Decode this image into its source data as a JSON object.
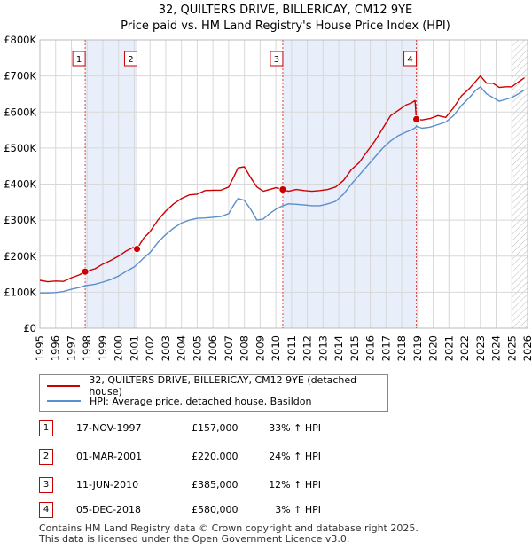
{
  "chart_data": {
    "type": "line",
    "title": "32, QUILTERS DRIVE, BILLERICAY, CM12 9YE",
    "subtitle": "Price paid vs. HM Land Registry's House Price Index (HPI)",
    "xlabel": "",
    "ylabel": "",
    "xlim": [
      1995,
      2026
    ],
    "ylim": [
      0,
      800000
    ],
    "x_ticks": [
      "1995",
      "1996",
      "1997",
      "1998",
      "1999",
      "2000",
      "2001",
      "2002",
      "2003",
      "2004",
      "2005",
      "2006",
      "2007",
      "2008",
      "2009",
      "2010",
      "2011",
      "2012",
      "2013",
      "2014",
      "2015",
      "2016",
      "2017",
      "2018",
      "2019",
      "2020",
      "2021",
      "2022",
      "2023",
      "2024",
      "2025",
      "2026"
    ],
    "y_ticks": [
      {
        "value": 0,
        "label": "£0"
      },
      {
        "value": 100000,
        "label": "£100K"
      },
      {
        "value": 200000,
        "label": "£200K"
      },
      {
        "value": 300000,
        "label": "£300K"
      },
      {
        "value": 400000,
        "label": "£400K"
      },
      {
        "value": 500000,
        "label": "£500K"
      },
      {
        "value": 600000,
        "label": "£600K"
      },
      {
        "value": 700000,
        "label": "£700K"
      },
      {
        "value": 800000,
        "label": "£800K"
      }
    ],
    "grid": true,
    "shaded_ranges": [
      [
        1997.88,
        2001.17
      ],
      [
        2010.44,
        2018.93
      ]
    ],
    "future_hatch_from": 2025.0,
    "series": [
      {
        "name": "32, QUILTERS DRIVE, BILLERICAY, CM12 9YE (detached house)",
        "color": "#cc0000",
        "x": [
          1995.0,
          1995.5,
          1996.0,
          1996.5,
          1997.0,
          1997.5,
          1997.88,
          1998.5,
          1999.0,
          1999.5,
          2000.0,
          2000.5,
          2001.0,
          2001.17,
          2001.6,
          2002.0,
          2002.5,
          2003.0,
          2003.5,
          2004.0,
          2004.5,
          2005.0,
          2005.5,
          2006.0,
          2006.5,
          2007.0,
          2007.3,
          2007.6,
          2008.0,
          2008.4,
          2008.8,
          2009.2,
          2009.6,
          2010.0,
          2010.44,
          2010.8,
          2011.3,
          2011.8,
          2012.3,
          2012.8,
          2013.3,
          2013.8,
          2014.3,
          2014.8,
          2015.3,
          2015.8,
          2016.3,
          2016.8,
          2017.3,
          2017.8,
          2018.3,
          2018.6,
          2018.85,
          2018.93,
          2019.3,
          2019.8,
          2020.3,
          2020.8,
          2021.3,
          2021.8,
          2022.3,
          2022.7,
          2023.0,
          2023.4,
          2023.8,
          2024.2,
          2024.6,
          2025.0,
          2025.4,
          2025.8
        ],
        "values": [
          133000,
          129000,
          131000,
          130000,
          140000,
          148000,
          157000,
          165000,
          178000,
          188000,
          200000,
          215000,
          226000,
          220000,
          250000,
          268000,
          300000,
          325000,
          345000,
          360000,
          370000,
          372000,
          382000,
          383000,
          383000,
          392000,
          418000,
          445000,
          448000,
          418000,
          392000,
          380000,
          385000,
          390000,
          385000,
          380000,
          385000,
          382000,
          380000,
          382000,
          385000,
          392000,
          410000,
          440000,
          460000,
          490000,
          520000,
          555000,
          590000,
          605000,
          620000,
          625000,
          632000,
          580000,
          578000,
          582000,
          590000,
          585000,
          612000,
          645000,
          665000,
          685000,
          700000,
          680000,
          680000,
          668000,
          670000,
          670000,
          683000,
          695000
        ]
      },
      {
        "name": "HPI: Average price, detached house, Basildon",
        "color": "#5a8fcc",
        "x": [
          1995.0,
          1995.5,
          1996.0,
          1996.5,
          1997.0,
          1997.5,
          1997.88,
          1998.5,
          1999.0,
          1999.5,
          2000.0,
          2000.5,
          2001.0,
          2001.17,
          2001.6,
          2002.0,
          2002.5,
          2003.0,
          2003.5,
          2004.0,
          2004.5,
          2005.0,
          2005.5,
          2006.0,
          2006.5,
          2007.0,
          2007.3,
          2007.6,
          2008.0,
          2008.4,
          2008.8,
          2009.2,
          2009.6,
          2010.0,
          2010.44,
          2010.8,
          2011.3,
          2011.8,
          2012.3,
          2012.8,
          2013.3,
          2013.8,
          2014.3,
          2014.8,
          2015.3,
          2015.8,
          2016.3,
          2016.8,
          2017.3,
          2017.8,
          2018.3,
          2018.6,
          2018.85,
          2018.93,
          2019.3,
          2019.8,
          2020.3,
          2020.8,
          2021.3,
          2021.8,
          2022.3,
          2022.7,
          2023.0,
          2023.4,
          2023.8,
          2024.2,
          2024.6,
          2025.0,
          2025.4,
          2025.8
        ],
        "values": [
          98000,
          98000,
          99000,
          102000,
          108000,
          113000,
          118000,
          122000,
          128000,
          135000,
          145000,
          158000,
          170000,
          177000,
          195000,
          210000,
          238000,
          260000,
          278000,
          292000,
          300000,
          305000,
          306000,
          308000,
          310000,
          318000,
          340000,
          360000,
          355000,
          330000,
          300000,
          303000,
          318000,
          330000,
          340000,
          345000,
          344000,
          342000,
          340000,
          340000,
          345000,
          352000,
          372000,
          400000,
          425000,
          450000,
          475000,
          500000,
          520000,
          535000,
          545000,
          550000,
          556000,
          560000,
          555000,
          558000,
          565000,
          572000,
          590000,
          618000,
          640000,
          660000,
          670000,
          650000,
          640000,
          630000,
          635000,
          640000,
          650000,
          662000
        ]
      }
    ],
    "markers": [
      {
        "label": "1",
        "x": 1997.88,
        "value": 157000
      },
      {
        "label": "2",
        "x": 2001.17,
        "value": 220000
      },
      {
        "label": "3",
        "x": 2010.44,
        "value": 385000
      },
      {
        "label": "4",
        "x": 2018.93,
        "value": 580000
      }
    ]
  },
  "legend": {
    "items": [
      {
        "label": "32, QUILTERS DRIVE, BILLERICAY, CM12 9YE (detached house)",
        "color": "#cc0000"
      },
      {
        "label": "HPI: Average price, detached house, Basildon",
        "color": "#5a8fcc"
      }
    ]
  },
  "transactions": [
    {
      "num": "1",
      "date": "17-NOV-1997",
      "price": "£157,000",
      "hpi": "33% ↑ HPI"
    },
    {
      "num": "2",
      "date": "01-MAR-2001",
      "price": "£220,000",
      "hpi": "24% ↑ HPI"
    },
    {
      "num": "3",
      "date": "11-JUN-2010",
      "price": "£385,000",
      "hpi": "12% ↑ HPI"
    },
    {
      "num": "4",
      "date": "05-DEC-2018",
      "price": "£580,000",
      "hpi": "3% ↑ HPI"
    }
  ],
  "footer": {
    "line1": "Contains HM Land Registry data © Crown copyright and database right 2025.",
    "line2": "This data is licensed under the Open Government Licence v3.0."
  }
}
